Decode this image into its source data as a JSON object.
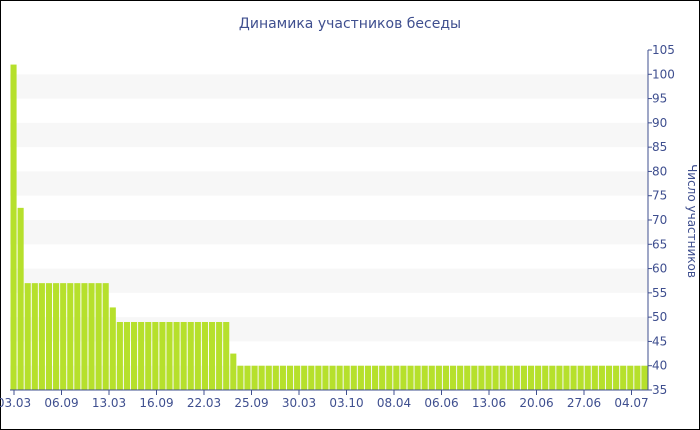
{
  "chart_data": {
    "type": "bar",
    "title": "Динамика участников беседы",
    "xlabel": "",
    "ylabel": "Число участников",
    "ylim": [
      35,
      105
    ],
    "y_ticks": [
      35,
      40,
      45,
      50,
      55,
      60,
      65,
      70,
      75,
      80,
      85,
      90,
      95,
      100,
      105
    ],
    "x_tick_labels": [
      "03.03",
      "06.09",
      "13.03",
      "16.09",
      "22.03",
      "25.09",
      "30.03",
      "03.10",
      "08.04",
      "06.06",
      "13.06",
      "20.06",
      "27.06",
      "04.07"
    ],
    "y_axis_position": "right",
    "grid": "horizontal bands",
    "legend": "none",
    "bar_color": "#b6e02c",
    "band_color": "#f7f7f7",
    "text_color": "#3f4f8f",
    "values": [
      102,
      72.5,
      57,
      57,
      57,
      57,
      57,
      57,
      57,
      57,
      57,
      57,
      57,
      57,
      52,
      49,
      49,
      49,
      49,
      49,
      49,
      49,
      49,
      49,
      49,
      49,
      49,
      49,
      49,
      49,
      49,
      42.5,
      40,
      40,
      40,
      40,
      40,
      40,
      40,
      40,
      40,
      40,
      40,
      40,
      40,
      40,
      40,
      40,
      40,
      40,
      40,
      40,
      40,
      40,
      40,
      40,
      40,
      40,
      40,
      40,
      40,
      40,
      40,
      40,
      40,
      40,
      40,
      40,
      40,
      40,
      40,
      40,
      40,
      40,
      40,
      40,
      40,
      40,
      40,
      40,
      40,
      40,
      40,
      40,
      40,
      40,
      40,
      40,
      40,
      40
    ]
  }
}
